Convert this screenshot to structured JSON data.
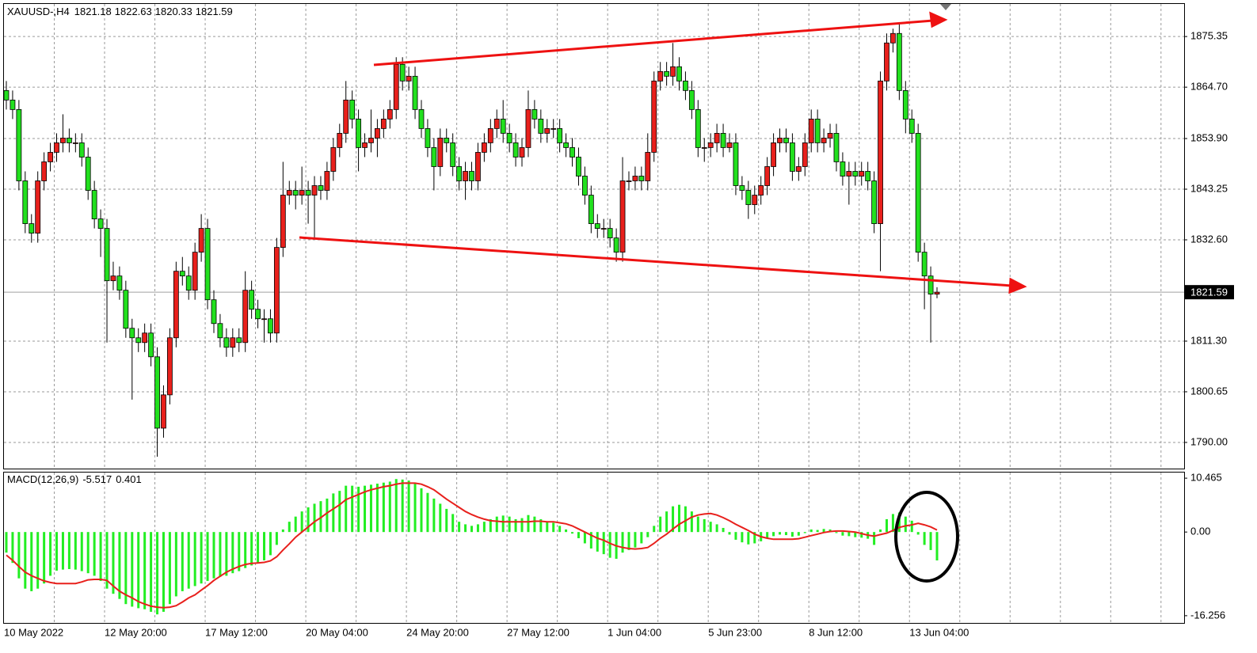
{
  "chart_data": [
    {
      "type": "candlestick",
      "symbol": "XAUUSD-,H4",
      "up_color": "#e8201c",
      "down_color": "#22e01e",
      "grid": true,
      "ylim": [
        1784.5,
        1882.2
      ],
      "yticks": [
        {
          "value": 1790,
          "label": "1790.00"
        },
        1800.65,
        {
          "value": 1811.3,
          "label": "1811.30"
        },
        {
          "value": 1832.6,
          "label": "1832.60"
        },
        1843.25,
        {
          "value": 1853.9,
          "label": "1853.90"
        },
        {
          "value": 1864.7,
          "label": "1864.70"
        },
        1875.35
      ],
      "categories": [
        "10 May 2022",
        null,
        null,
        null,
        null,
        null,
        null,
        null,
        null,
        null,
        null,
        null,
        null,
        null,
        null,
        null,
        "12 May 20:00",
        null,
        null,
        null,
        null,
        null,
        null,
        null,
        null,
        null,
        null,
        null,
        null,
        null,
        null,
        null,
        "17 May 12:00",
        null,
        null,
        null,
        null,
        null,
        null,
        null,
        null,
        null,
        null,
        null,
        null,
        null,
        null,
        null,
        "20 May 04:00",
        null,
        null,
        null,
        null,
        null,
        null,
        null,
        null,
        null,
        null,
        null,
        null,
        null,
        null,
        null,
        "24 May 20:00",
        null,
        null,
        null,
        null,
        null,
        null,
        null,
        null,
        null,
        null,
        null,
        null,
        null,
        null,
        null,
        "27 May 12:00",
        null,
        null,
        null,
        null,
        null,
        null,
        null,
        null,
        null,
        null,
        null,
        null,
        null,
        null,
        null,
        "1 Jun 04:00",
        null,
        null,
        null,
        null,
        null,
        null,
        null,
        null,
        null,
        null,
        null,
        null,
        null,
        null,
        null,
        "5 Jun 23:00",
        null,
        null,
        null,
        null,
        null,
        null,
        null,
        null,
        null,
        null,
        null,
        null,
        null,
        null,
        null,
        "8 Jun 12:00",
        null,
        null,
        null,
        null,
        null,
        null,
        null,
        null,
        null,
        null,
        null,
        null,
        null,
        null,
        null,
        "13 Jun 04:00",
        null,
        null,
        null,
        null
      ],
      "open": [
        1864,
        1862,
        1860,
        1845,
        1836,
        1834,
        1845,
        1849,
        1851,
        1853,
        1854,
        1853,
        1853,
        1850,
        1843,
        1837,
        1835,
        1824,
        1825,
        1822,
        1814,
        1812,
        1811,
        1813,
        1808,
        1793,
        1800,
        1812,
        1826,
        1825,
        1822,
        1830,
        1835,
        1820,
        1815,
        1812,
        1810,
        1812,
        1811,
        1822,
        1818,
        1816,
        1816,
        1813,
        1831,
        1842,
        1843,
        1842,
        1843,
        1842,
        1844,
        1843,
        1847,
        1852,
        1855,
        1862,
        1858,
        1852,
        1853,
        1854,
        1856,
        1858,
        1860,
        1869.5,
        1866,
        1867,
        1860,
        1856,
        1852,
        1848,
        1854,
        1853,
        1848,
        1845,
        1847,
        1845,
        1851,
        1853,
        1856,
        1858,
        1855,
        1853,
        1850,
        1852,
        1860,
        1858,
        1855,
        1856,
        1856,
        1853,
        1852,
        1850,
        1846,
        1842,
        1836,
        1835,
        1835,
        1833,
        1830,
        1845,
        1845,
        1846,
        1845,
        1851,
        1866,
        1868,
        1867,
        1869,
        1866,
        1864,
        1860,
        1852,
        1852,
        1853,
        1855,
        1852,
        1853,
        1844,
        1843,
        1840,
        1842,
        1844,
        1848,
        1853,
        1854,
        1853,
        1847,
        1848,
        1853,
        1858,
        1853,
        1854,
        1855,
        1849,
        1846,
        1847,
        1846,
        1847,
        1845,
        1836,
        1866,
        1874,
        1876,
        1864,
        1858,
        1855,
        1830,
        1825,
        1821.18
      ],
      "high": [
        1866,
        1864,
        1862,
        1847,
        1838,
        1847,
        1851,
        1853,
        1855,
        1859,
        1856,
        1855,
        1855,
        1852,
        1845,
        1839,
        1837,
        1828,
        1827,
        1824,
        1816,
        1814,
        1815,
        1815,
        1810,
        1802,
        1814,
        1828,
        1829,
        1827,
        1832,
        1838,
        1837,
        1822,
        1817,
        1814,
        1814,
        1814,
        1826,
        1824,
        1820,
        1818,
        1818,
        1833,
        1849,
        1845,
        1845,
        1848,
        1845,
        1846,
        1846,
        1849,
        1854,
        1857,
        1866,
        1864,
        1860,
        1855,
        1860,
        1858,
        1860,
        1862,
        1871,
        1871,
        1869,
        1869,
        1862,
        1858,
        1854,
        1856,
        1856,
        1855,
        1850,
        1849,
        1849,
        1853,
        1855,
        1858,
        1860,
        1862,
        1857,
        1855,
        1854,
        1864,
        1862,
        1860,
        1858,
        1858,
        1858,
        1855,
        1854,
        1852,
        1848,
        1844,
        1838,
        1837,
        1837,
        1835,
        1850,
        1847,
        1848,
        1848,
        1855,
        1868,
        1870,
        1870,
        1874,
        1871,
        1868,
        1866,
        1862,
        1854,
        1855,
        1857,
        1857,
        1855,
        1855,
        1846,
        1845,
        1844,
        1846,
        1850,
        1855,
        1856,
        1856,
        1855,
        1850,
        1855,
        1860,
        1860,
        1856,
        1857,
        1857,
        1851,
        1849,
        1849,
        1849,
        1849,
        1847,
        1868,
        1876,
        1877,
        1878,
        1866,
        1860,
        1857,
        1832,
        1827,
        1822.63
      ],
      "low": [
        1860,
        1858,
        1843,
        1834,
        1832,
        1832,
        1843,
        1847,
        1849,
        1851,
        1851,
        1851,
        1848,
        1841,
        1835,
        1829,
        1811,
        1822,
        1820,
        1812,
        1799,
        1809,
        1809,
        1806,
        1787,
        1791,
        1798,
        1810,
        1823,
        1820,
        1820,
        1828,
        1818,
        1813,
        1810,
        1808,
        1808,
        1809,
        1809,
        1816,
        1814,
        1811,
        1811,
        1811,
        1829,
        1840,
        1839,
        1840,
        1836,
        1833,
        1841,
        1841,
        1845,
        1850,
        1853,
        1856,
        1847,
        1850,
        1851,
        1850,
        1854,
        1856,
        1858,
        1864,
        1864,
        1858,
        1854,
        1850,
        1843,
        1846,
        1851,
        1846,
        1843,
        1841,
        1843,
        1843,
        1849,
        1851,
        1854,
        1853,
        1851,
        1848,
        1848,
        1850,
        1856,
        1853,
        1853,
        1854,
        1851,
        1850,
        1848,
        1844,
        1840,
        1834,
        1833,
        1833,
        1831,
        1828,
        1828,
        1843,
        1843,
        1843,
        1843,
        1849,
        1864,
        1865,
        1865,
        1864,
        1862,
        1858,
        1850,
        1849,
        1850,
        1851,
        1850,
        1851,
        1842,
        1841,
        1837,
        1838,
        1840,
        1842,
        1846,
        1851,
        1851,
        1845,
        1845,
        1846,
        1851,
        1851,
        1851,
        1852,
        1847,
        1844,
        1840,
        1844,
        1844,
        1843,
        1834,
        1826,
        1864,
        1872,
        1862,
        1855,
        1853,
        1828,
        1818,
        1811,
        1820.33
      ],
      "close": [
        1862,
        1860,
        1845,
        1836,
        1834,
        1845,
        1849,
        1851,
        1853,
        1854,
        1853,
        1853,
        1850,
        1843,
        1837,
        1835,
        1824,
        1825,
        1822,
        1814,
        1812,
        1811,
        1813,
        1808,
        1793,
        1800,
        1812,
        1826,
        1825,
        1822,
        1830,
        1835,
        1820,
        1815,
        1812,
        1810,
        1812,
        1811,
        1822,
        1818,
        1816,
        1816,
        1813,
        1831,
        1842,
        1843,
        1842,
        1843,
        1842,
        1844,
        1843,
        1847,
        1852,
        1855,
        1862,
        1858,
        1852,
        1853,
        1854,
        1856,
        1858,
        1860,
        1869.5,
        1866,
        1867,
        1860,
        1856,
        1852,
        1848,
        1854,
        1853,
        1848,
        1845,
        1847,
        1845,
        1851,
        1853,
        1856,
        1858,
        1855,
        1853,
        1850,
        1852,
        1860,
        1858,
        1855,
        1856,
        1856,
        1853,
        1852,
        1850,
        1846,
        1842,
        1836,
        1835,
        1835,
        1833,
        1830,
        1845,
        1845,
        1846,
        1845,
        1851,
        1866,
        1868,
        1867,
        1869,
        1866,
        1864,
        1860,
        1852,
        1852,
        1853,
        1855,
        1852,
        1853,
        1844,
        1843,
        1840,
        1842,
        1844,
        1848,
        1853,
        1854,
        1853,
        1847,
        1848,
        1853,
        1858,
        1853,
        1854,
        1855,
        1849,
        1846,
        1847,
        1846,
        1847,
        1845,
        1836,
        1866,
        1874,
        1876,
        1864,
        1858,
        1855,
        1830,
        1825,
        1821.18,
        1821.59
      ]
    },
    {
      "type": "macd",
      "title": "MACD(12,26,9)",
      "ylim": [
        -17.66,
        11.56
      ],
      "yticks": [
        -16.256,
        {
          "value": 0,
          "label": "0.00"
        },
        10.465
      ],
      "histogram": {
        "color": "#22ee22",
        "values": [
          -4,
          -6,
          -9,
          -11,
          -11.5,
          -11,
          -10,
          -8.5,
          -7.5,
          -7.3,
          -7.2,
          -7.3,
          -7.6,
          -8,
          -8.5,
          -9.5,
          -11,
          -12,
          -13,
          -14,
          -14.5,
          -14.8,
          -15,
          -15.5,
          -16,
          -15.5,
          -14,
          -12.5,
          -11.5,
          -11,
          -10.5,
          -10,
          -9.5,
          -9,
          -8.7,
          -8.5,
          -8,
          -7.6,
          -7,
          -6.5,
          -6,
          -5.5,
          -4.5,
          -2.5,
          0.5,
          2,
          3,
          4,
          4.8,
          5.5,
          6,
          6.5,
          7.5,
          8,
          9,
          9,
          8.8,
          9,
          9.2,
          9.4,
          9.6,
          9.8,
          10.3,
          10.2,
          10,
          9.4,
          8.5,
          7.6,
          6.5,
          5.5,
          4.5,
          3.5,
          2,
          1.5,
          1.2,
          1.5,
          2,
          2.5,
          3,
          3.2,
          3,
          2.5,
          2.7,
          3.3,
          3,
          2.5,
          2,
          1.8,
          1.2,
          0.5,
          -0.3,
          -1.2,
          -2.2,
          -3.2,
          -3.8,
          -4.3,
          -5,
          -5.2,
          -4,
          -3.5,
          -3,
          -2.2,
          -1,
          1.2,
          3,
          4,
          5,
          5.3,
          5,
          4,
          3,
          2.5,
          2,
          1.5,
          0.8,
          -0.5,
          -1.5,
          -2,
          -2.4,
          -2.2,
          -1.8,
          -1.2,
          -0.8,
          -0.5,
          -0.6,
          -0.9,
          -0.7,
          -0.2,
          0.5,
          0.4,
          0.6,
          0.5,
          -0.2,
          -0.7,
          -0.8,
          -1,
          -1.1,
          -1.3,
          -2.5,
          0.5,
          2.5,
          3.5,
          3.8,
          3,
          2.2,
          -0.5,
          -2.5,
          -3.5,
          -5.517
        ]
      },
      "signal": {
        "color": "#e8201c",
        "values": [
          -4.5,
          -5.5,
          -6.7,
          -7.8,
          -8.5,
          -9,
          -9.5,
          -9.8,
          -10,
          -10,
          -10,
          -10,
          -9.7,
          -9.3,
          -9.2,
          -9.2,
          -9.4,
          -10.5,
          -11.5,
          -12.2,
          -12.8,
          -13.5,
          -14,
          -14.4,
          -14.6,
          -14.7,
          -14.6,
          -14.3,
          -13.6,
          -12.8,
          -12.2,
          -11.3,
          -10.4,
          -9.4,
          -8.6,
          -7.8,
          -7.2,
          -6.7,
          -6.3,
          -6.1,
          -6,
          -5.9,
          -5.6,
          -4.8,
          -3.5,
          -2.3,
          -1,
          0,
          1,
          2,
          2.8,
          3.7,
          4.5,
          5.3,
          6.3,
          6.8,
          7.3,
          7.8,
          8.2,
          8.5,
          8.8,
          9,
          9.3,
          9.5,
          9.5,
          9.5,
          9.3,
          8.8,
          8.2,
          7.3,
          6.4,
          5.6,
          4.8,
          4,
          3.4,
          2.9,
          2.5,
          2.2,
          2.1,
          2,
          2,
          2,
          2,
          2,
          2.1,
          2.1,
          2,
          2,
          1.8,
          1.6,
          1.2,
          0.6,
          0,
          -0.6,
          -1.2,
          -1.6,
          -2.2,
          -2.7,
          -3,
          -3.2,
          -3.3,
          -3.2,
          -3,
          -2.2,
          -1.2,
          -0.4,
          0.6,
          1.5,
          2.2,
          2.9,
          3.3,
          3.5,
          3.6,
          3.3,
          2.8,
          2.2,
          1.5,
          0.9,
          0.3,
          -0.4,
          -0.9,
          -1.2,
          -1.4,
          -1.4,
          -1.4,
          -1.4,
          -1.3,
          -1,
          -0.7,
          -0.4,
          -0.1,
          0.1,
          0.2,
          0.2,
          0.1,
          0,
          -0.3,
          -0.6,
          -0.8,
          -0.5,
          -0.2,
          0.3,
          0.9,
          1.2,
          1.4,
          1.7,
          1.4,
          1,
          0.401
        ]
      }
    }
  ]
}
